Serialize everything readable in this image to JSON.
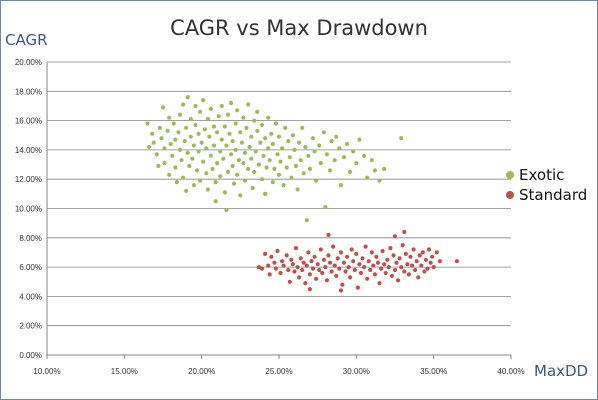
{
  "chart_data": {
    "type": "scatter",
    "title": "CAGR vs Max Drawdown",
    "xlabel": "MaxDD",
    "ylabel": "CAGR",
    "xlim": [
      0.1,
      0.4
    ],
    "ylim": [
      0.0,
      0.2
    ],
    "xticks": [
      0.1,
      0.15,
      0.2,
      0.25,
      0.3,
      0.35,
      0.4
    ],
    "xtick_labels": [
      "10.00%",
      "15.00%",
      "20.00%",
      "25.00%",
      "30.00%",
      "35.00%",
      "40.00%"
    ],
    "yticks": [
      0.0,
      0.02,
      0.04,
      0.06,
      0.08,
      0.1,
      0.12,
      0.14,
      0.16,
      0.18,
      0.2
    ],
    "ytick_labels": [
      "0.00%",
      "2.00%",
      "4.00%",
      "6.00%",
      "8.00%",
      "10.00%",
      "12.00%",
      "14.00%",
      "16.00%",
      "18.00%",
      "20.00%"
    ],
    "grid": "horizontal",
    "legend_position": "right",
    "series": [
      {
        "name": "Exotic",
        "color": "#9bbb59",
        "points": [
          [
            0.165,
            0.158
          ],
          [
            0.166,
            0.142
          ],
          [
            0.168,
            0.151
          ],
          [
            0.169,
            0.145
          ],
          [
            0.171,
            0.137
          ],
          [
            0.172,
            0.129
          ],
          [
            0.173,
            0.155
          ],
          [
            0.174,
            0.148
          ],
          [
            0.175,
            0.169
          ],
          [
            0.176,
            0.131
          ],
          [
            0.176,
            0.141
          ],
          [
            0.178,
            0.153
          ],
          [
            0.179,
            0.162
          ],
          [
            0.179,
            0.123
          ],
          [
            0.18,
            0.144
          ],
          [
            0.181,
            0.136
          ],
          [
            0.182,
            0.158
          ],
          [
            0.183,
            0.128
          ],
          [
            0.183,
            0.147
          ],
          [
            0.184,
            0.118
          ],
          [
            0.185,
            0.152
          ],
          [
            0.186,
            0.14
          ],
          [
            0.186,
            0.164
          ],
          [
            0.187,
            0.133
          ],
          [
            0.188,
            0.121
          ],
          [
            0.188,
            0.171
          ],
          [
            0.189,
            0.146
          ],
          [
            0.19,
            0.155
          ],
          [
            0.19,
            0.112
          ],
          [
            0.191,
            0.138
          ],
          [
            0.191,
            0.176
          ],
          [
            0.192,
            0.129
          ],
          [
            0.193,
            0.149
          ],
          [
            0.193,
            0.161
          ],
          [
            0.194,
            0.134
          ],
          [
            0.195,
            0.143
          ],
          [
            0.195,
            0.116
          ],
          [
            0.196,
            0.157
          ],
          [
            0.196,
            0.17
          ],
          [
            0.197,
            0.126
          ],
          [
            0.198,
            0.151
          ],
          [
            0.198,
            0.139
          ],
          [
            0.199,
            0.166
          ],
          [
            0.199,
            0.119
          ],
          [
            0.2,
            0.145
          ],
          [
            0.201,
            0.132
          ],
          [
            0.201,
            0.174
          ],
          [
            0.202,
            0.154
          ],
          [
            0.203,
            0.141
          ],
          [
            0.203,
            0.124
          ],
          [
            0.204,
            0.161
          ],
          [
            0.204,
            0.113
          ],
          [
            0.205,
            0.149
          ],
          [
            0.206,
            0.136
          ],
          [
            0.206,
            0.168
          ],
          [
            0.207,
            0.127
          ],
          [
            0.208,
            0.156
          ],
          [
            0.208,
            0.143
          ],
          [
            0.209,
            0.118
          ],
          [
            0.209,
            0.105
          ],
          [
            0.21,
            0.152
          ],
          [
            0.21,
            0.131
          ],
          [
            0.211,
            0.163
          ],
          [
            0.212,
            0.139
          ],
          [
            0.212,
            0.122
          ],
          [
            0.213,
            0.147
          ],
          [
            0.213,
            0.17
          ],
          [
            0.214,
            0.134
          ],
          [
            0.215,
            0.156
          ],
          [
            0.215,
            0.111
          ],
          [
            0.216,
            0.143
          ],
          [
            0.216,
            0.099
          ],
          [
            0.217,
            0.125
          ],
          [
            0.217,
            0.164
          ],
          [
            0.218,
            0.151
          ],
          [
            0.219,
            0.137
          ],
          [
            0.219,
            0.172
          ],
          [
            0.22,
            0.129
          ],
          [
            0.22,
            0.146
          ],
          [
            0.221,
            0.117
          ],
          [
            0.222,
            0.158
          ],
          [
            0.222,
            0.14
          ],
          [
            0.223,
            0.167
          ],
          [
            0.223,
            0.123
          ],
          [
            0.224,
            0.133
          ],
          [
            0.225,
            0.152
          ],
          [
            0.225,
            0.109
          ],
          [
            0.226,
            0.145
          ],
          [
            0.227,
            0.131
          ],
          [
            0.227,
            0.162
          ],
          [
            0.228,
            0.138
          ],
          [
            0.228,
            0.119
          ],
          [
            0.229,
            0.155
          ],
          [
            0.23,
            0.127
          ],
          [
            0.23,
            0.171
          ],
          [
            0.231,
            0.142
          ],
          [
            0.232,
            0.134
          ],
          [
            0.232,
            0.149
          ],
          [
            0.233,
            0.114
          ],
          [
            0.234,
            0.16
          ],
          [
            0.234,
            0.125
          ],
          [
            0.235,
            0.139
          ],
          [
            0.236,
            0.153
          ],
          [
            0.236,
            0.166
          ],
          [
            0.237,
            0.13
          ],
          [
            0.238,
            0.145
          ],
          [
            0.239,
            0.12
          ],
          [
            0.239,
            0.157
          ],
          [
            0.24,
            0.136
          ],
          [
            0.241,
            0.148
          ],
          [
            0.241,
            0.11
          ],
          [
            0.242,
            0.128
          ],
          [
            0.243,
            0.162
          ],
          [
            0.243,
            0.141
          ],
          [
            0.244,
            0.133
          ],
          [
            0.245,
            0.151
          ],
          [
            0.246,
            0.118
          ],
          [
            0.246,
            0.144
          ],
          [
            0.247,
            0.127
          ],
          [
            0.248,
            0.158
          ],
          [
            0.249,
            0.137
          ],
          [
            0.25,
            0.123
          ],
          [
            0.25,
            0.149
          ],
          [
            0.251,
            0.132
          ],
          [
            0.252,
            0.141
          ],
          [
            0.253,
            0.116
          ],
          [
            0.254,
            0.155
          ],
          [
            0.255,
            0.128
          ],
          [
            0.256,
            0.146
          ],
          [
            0.257,
            0.135
          ],
          [
            0.258,
            0.121
          ],
          [
            0.259,
            0.15
          ],
          [
            0.26,
            0.14
          ],
          [
            0.261,
            0.129
          ],
          [
            0.262,
            0.113
          ],
          [
            0.263,
            0.145
          ],
          [
            0.264,
            0.133
          ],
          [
            0.265,
            0.155
          ],
          [
            0.266,
            0.124
          ],
          [
            0.267,
            0.142
          ],
          [
            0.268,
            0.092
          ],
          [
            0.269,
            0.136
          ],
          [
            0.27,
            0.127
          ],
          [
            0.272,
            0.148
          ],
          [
            0.273,
            0.139
          ],
          [
            0.274,
            0.119
          ],
          [
            0.276,
            0.143
          ],
          [
            0.277,
            0.131
          ],
          [
            0.279,
            0.152
          ],
          [
            0.28,
            0.101
          ],
          [
            0.281,
            0.137
          ],
          [
            0.283,
            0.126
          ],
          [
            0.284,
            0.146
          ],
          [
            0.286,
            0.133
          ],
          [
            0.287,
            0.149
          ],
          [
            0.289,
            0.141
          ],
          [
            0.29,
            0.116
          ],
          [
            0.292,
            0.135
          ],
          [
            0.294,
            0.144
          ],
          [
            0.296,
            0.125
          ],
          [
            0.298,
            0.139
          ],
          [
            0.3,
            0.131
          ],
          [
            0.302,
            0.147
          ],
          [
            0.305,
            0.136
          ],
          [
            0.307,
            0.121
          ],
          [
            0.31,
            0.133
          ],
          [
            0.312,
            0.126
          ],
          [
            0.315,
            0.119
          ],
          [
            0.318,
            0.127
          ],
          [
            0.329,
            0.148
          ]
        ]
      },
      {
        "name": "Standard",
        "color": "#c0504d",
        "points": [
          [
            0.237,
            0.06
          ],
          [
            0.239,
            0.059
          ],
          [
            0.241,
            0.069
          ],
          [
            0.243,
            0.061
          ],
          [
            0.244,
            0.055
          ],
          [
            0.245,
            0.067
          ],
          [
            0.247,
            0.063
          ],
          [
            0.248,
            0.059
          ],
          [
            0.249,
            0.071
          ],
          [
            0.251,
            0.056
          ],
          [
            0.252,
            0.064
          ],
          [
            0.253,
            0.061
          ],
          [
            0.255,
            0.068
          ],
          [
            0.256,
            0.058
          ],
          [
            0.257,
            0.05
          ],
          [
            0.258,
            0.065
          ],
          [
            0.259,
            0.062
          ],
          [
            0.26,
            0.057
          ],
          [
            0.261,
            0.073
          ],
          [
            0.262,
            0.06
          ],
          [
            0.263,
            0.053
          ],
          [
            0.264,
            0.066
          ],
          [
            0.265,
            0.058
          ],
          [
            0.266,
            0.063
          ],
          [
            0.267,
            0.049
          ],
          [
            0.268,
            0.061
          ],
          [
            0.269,
            0.07
          ],
          [
            0.27,
            0.055
          ],
          [
            0.271,
            0.064
          ],
          [
            0.272,
            0.059
          ],
          [
            0.273,
            0.067
          ],
          [
            0.274,
            0.052
          ],
          [
            0.275,
            0.062
          ],
          [
            0.276,
            0.058
          ],
          [
            0.277,
            0.072
          ],
          [
            0.278,
            0.056
          ],
          [
            0.279,
            0.065
          ],
          [
            0.28,
            0.06
          ],
          [
            0.281,
            0.051
          ],
          [
            0.282,
            0.068
          ],
          [
            0.283,
            0.063
          ],
          [
            0.284,
            0.057
          ],
          [
            0.285,
            0.074
          ],
          [
            0.286,
            0.061
          ],
          [
            0.287,
            0.054
          ],
          [
            0.288,
            0.066
          ],
          [
            0.289,
            0.059
          ],
          [
            0.29,
            0.07
          ],
          [
            0.291,
            0.048
          ],
          [
            0.292,
            0.063
          ],
          [
            0.293,
            0.057
          ],
          [
            0.294,
            0.067
          ],
          [
            0.295,
            0.06
          ],
          [
            0.296,
            0.053
          ],
          [
            0.297,
            0.072
          ],
          [
            0.298,
            0.064
          ],
          [
            0.299,
            0.058
          ],
          [
            0.3,
            0.069
          ],
          [
            0.301,
            0.046
          ],
          [
            0.302,
            0.062
          ],
          [
            0.303,
            0.056
          ],
          [
            0.304,
            0.066
          ],
          [
            0.305,
            0.06
          ],
          [
            0.306,
            0.074
          ],
          [
            0.307,
            0.052
          ],
          [
            0.308,
            0.064
          ],
          [
            0.309,
            0.058
          ],
          [
            0.31,
            0.07
          ],
          [
            0.311,
            0.061
          ],
          [
            0.312,
            0.055
          ],
          [
            0.313,
            0.067
          ],
          [
            0.314,
            0.063
          ],
          [
            0.315,
            0.049
          ],
          [
            0.316,
            0.059
          ],
          [
            0.317,
            0.071
          ],
          [
            0.318,
            0.062
          ],
          [
            0.319,
            0.056
          ],
          [
            0.32,
            0.065
          ],
          [
            0.321,
            0.06
          ],
          [
            0.322,
            0.073
          ],
          [
            0.323,
            0.054
          ],
          [
            0.324,
            0.068
          ],
          [
            0.325,
            0.058
          ],
          [
            0.326,
            0.063
          ],
          [
            0.327,
            0.051
          ],
          [
            0.328,
            0.066
          ],
          [
            0.329,
            0.06
          ],
          [
            0.33,
            0.075
          ],
          [
            0.331,
            0.057
          ],
          [
            0.332,
            0.069
          ],
          [
            0.333,
            0.062
          ],
          [
            0.334,
            0.055
          ],
          [
            0.335,
            0.067
          ],
          [
            0.336,
            0.061
          ],
          [
            0.337,
            0.072
          ],
          [
            0.338,
            0.058
          ],
          [
            0.339,
            0.064
          ],
          [
            0.34,
            0.053
          ],
          [
            0.341,
            0.068
          ],
          [
            0.342,
            0.061
          ],
          [
            0.343,
            0.07
          ],
          [
            0.344,
            0.057
          ],
          [
            0.345,
            0.065
          ],
          [
            0.346,
            0.059
          ],
          [
            0.347,
            0.072
          ],
          [
            0.348,
            0.063
          ],
          [
            0.349,
            0.067
          ],
          [
            0.35,
            0.06
          ],
          [
            0.352,
            0.07
          ],
          [
            0.354,
            0.064
          ],
          [
            0.365,
            0.064
          ],
          [
            0.331,
            0.084
          ],
          [
            0.325,
            0.081
          ],
          [
            0.29,
            0.044
          ],
          [
            0.282,
            0.082
          ],
          [
            0.27,
            0.045
          ]
        ]
      }
    ]
  }
}
